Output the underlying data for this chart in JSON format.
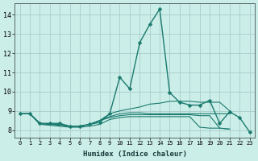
{
  "xlabel": "Humidex (Indice chaleur)",
  "bg_color": "#cceee8",
  "grid_color": "#aacccc",
  "line_color": "#1a7a6e",
  "xlim": [
    -0.5,
    23.5
  ],
  "ylim": [
    7.6,
    14.6
  ],
  "xticks": [
    0,
    1,
    2,
    3,
    4,
    5,
    6,
    7,
    8,
    9,
    10,
    11,
    12,
    13,
    14,
    15,
    16,
    17,
    18,
    19,
    20,
    21,
    22,
    23
  ],
  "yticks": [
    8,
    9,
    10,
    11,
    12,
    13,
    14
  ],
  "series": [
    {
      "x": [
        0,
        1,
        2,
        3,
        4,
        5,
        6,
        7,
        8,
        9,
        10,
        11,
        12,
        13,
        14,
        15,
        16,
        17,
        18,
        19,
        20,
        21,
        22,
        23
      ],
      "y": [
        8.85,
        8.85,
        8.35,
        8.35,
        8.35,
        8.2,
        8.2,
        8.3,
        8.4,
        8.85,
        10.75,
        10.15,
        12.55,
        13.5,
        14.3,
        9.95,
        9.45,
        9.3,
        9.3,
        9.55,
        8.35,
        8.95,
        8.65,
        7.9
      ],
      "lw": 1.0,
      "marker": true,
      "markersize": 2.5
    },
    {
      "x": [
        0,
        1,
        2,
        3,
        4,
        5,
        6,
        7,
        8,
        9,
        10,
        11,
        12,
        13,
        14,
        15,
        16,
        17,
        18,
        19,
        20,
        21
      ],
      "y": [
        8.85,
        8.85,
        8.35,
        8.3,
        8.3,
        8.2,
        8.2,
        8.3,
        8.5,
        8.85,
        9.0,
        9.1,
        9.2,
        9.35,
        9.4,
        9.5,
        9.5,
        9.5,
        9.45,
        9.45,
        9.45,
        9.0
      ],
      "lw": 0.8,
      "marker": false,
      "markersize": 0
    },
    {
      "x": [
        0,
        1,
        2,
        3,
        4,
        5,
        6,
        7,
        8,
        9,
        10,
        11,
        12,
        13,
        14,
        15,
        16,
        17,
        18,
        19,
        20,
        21
      ],
      "y": [
        8.85,
        8.85,
        8.35,
        8.3,
        8.3,
        8.2,
        8.2,
        8.3,
        8.5,
        8.7,
        8.85,
        8.9,
        8.9,
        8.85,
        8.85,
        8.85,
        8.85,
        8.85,
        8.85,
        8.85,
        8.85,
        8.85
      ],
      "lw": 0.8,
      "marker": false,
      "markersize": 0
    },
    {
      "x": [
        0,
        1,
        2,
        3,
        4,
        5,
        6,
        7,
        8,
        9,
        10,
        11,
        12,
        13,
        14,
        15,
        16,
        17,
        18,
        19,
        20,
        21
      ],
      "y": [
        8.85,
        8.85,
        8.3,
        8.25,
        8.2,
        8.15,
        8.15,
        8.2,
        8.3,
        8.55,
        8.65,
        8.7,
        8.7,
        8.7,
        8.7,
        8.7,
        8.7,
        8.7,
        8.15,
        8.1,
        8.1,
        8.05
      ],
      "lw": 0.8,
      "marker": false,
      "markersize": 0
    },
    {
      "x": [
        0,
        1,
        2,
        3,
        4,
        5,
        6,
        7,
        8,
        9,
        10,
        11,
        12,
        13,
        14,
        15,
        16,
        17,
        18,
        19,
        20,
        21
      ],
      "y": [
        8.85,
        8.85,
        8.35,
        8.3,
        8.25,
        8.2,
        8.2,
        8.3,
        8.5,
        8.65,
        8.75,
        8.8,
        8.8,
        8.8,
        8.8,
        8.8,
        8.8,
        8.8,
        8.75,
        8.75,
        8.1,
        8.05
      ],
      "lw": 0.8,
      "marker": false,
      "markersize": 0
    }
  ],
  "xtick_fontsize": 5.0,
  "ytick_fontsize": 6.0,
  "xlabel_fontsize": 6.5
}
